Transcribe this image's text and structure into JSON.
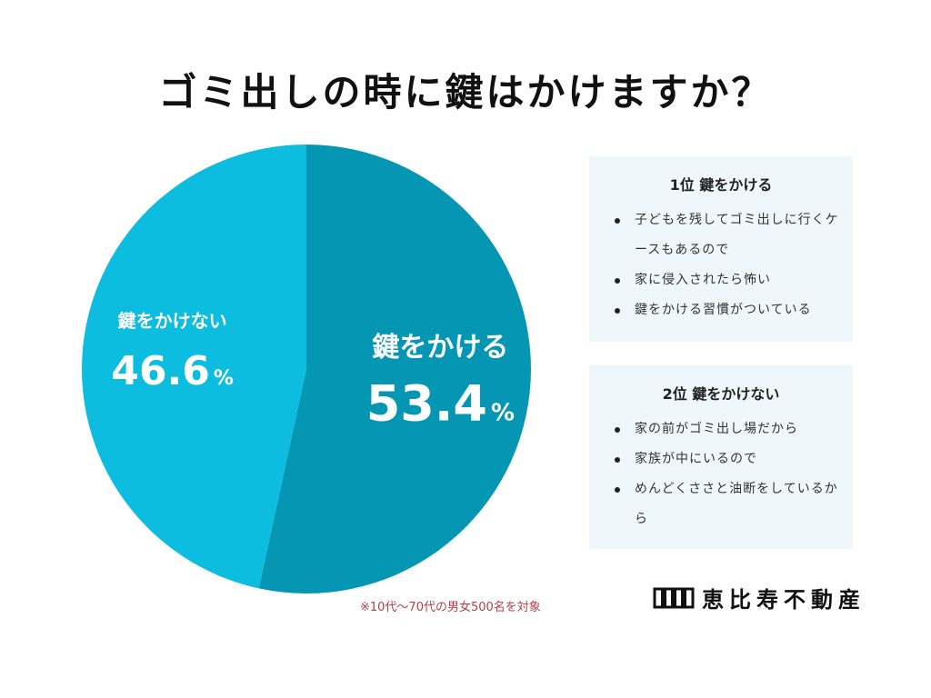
{
  "title": "ゴミ出しの時に鍵はかけますか？",
  "chart_data": {
    "type": "pie",
    "slices": [
      {
        "label": "鍵をかける",
        "value": 53.4,
        "value_text": "53.4",
        "unit": "%",
        "color": "#0596b3"
      },
      {
        "label": "鍵をかけない",
        "value": 46.6,
        "value_text": "46.6",
        "unit": "%",
        "color": "#0cbde0"
      }
    ]
  },
  "boxes": [
    {
      "heading": "1位 鍵をかける",
      "items": [
        "子どもを残してゴミ出しに行くケースもあるので",
        "家に侵入されたら怖い",
        "鍵をかける習慣がついている"
      ]
    },
    {
      "heading": "2位 鍵をかけない",
      "items": [
        "家の前がゴミ出し場だから",
        "家族が中にいるので",
        "めんどくささと油断をしているから"
      ]
    }
  ],
  "note": "※10代〜70代の男女500名を対象",
  "logo": {
    "text": "恵比寿不動産",
    "icon": "building-logo-icon"
  }
}
